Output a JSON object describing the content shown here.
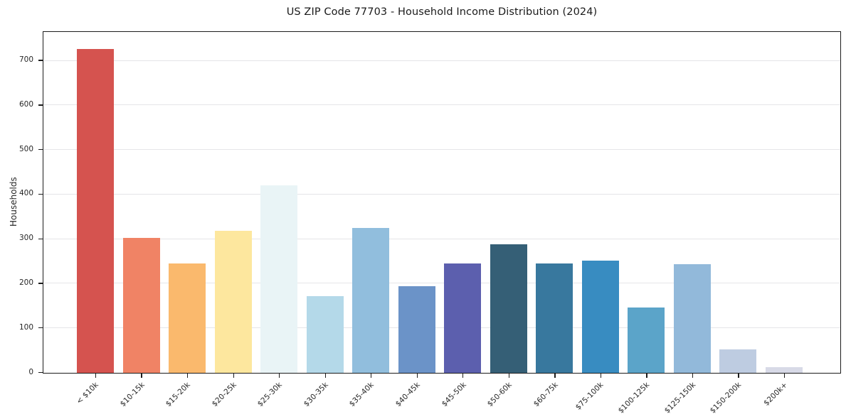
{
  "chart_data": {
    "type": "bar",
    "title": "US ZIP Code 77703 - Household Income Distribution (2024)",
    "xlabel": "",
    "ylabel": "Households",
    "categories": [
      "< $10k",
      "$10-15k",
      "$15-20k",
      "$20-25k",
      "$25-30k",
      "$30-35k",
      "$35-40k",
      "$40-45k",
      "$45-50k",
      "$50-60k",
      "$60-75k",
      "$75-100k",
      "$100-125k",
      "$125-150k",
      "$150-200k",
      "$200k+"
    ],
    "values": [
      727,
      302,
      245,
      318,
      421,
      172,
      325,
      195,
      246,
      288,
      246,
      252,
      146,
      243,
      53,
      13
    ],
    "bar_colors": [
      "#d5534f",
      "#f08365",
      "#fab96d",
      "#fde79e",
      "#e9f4f6",
      "#b4d9e9",
      "#91bedd",
      "#6b93c8",
      "#5c5fae",
      "#355f76",
      "#38789e",
      "#388cc1",
      "#5ba4c9",
      "#92b9da",
      "#becce1",
      "#d8dae7"
    ],
    "ylim": [
      0,
      763
    ],
    "yticks": [
      0,
      100,
      200,
      300,
      400,
      500,
      600,
      700
    ],
    "grid": "horizontal",
    "legend_position": "none"
  },
  "style": {
    "grid_color": "#e5e5e8",
    "spine_color": "#1c1c1c",
    "text_color": "#262626"
  }
}
